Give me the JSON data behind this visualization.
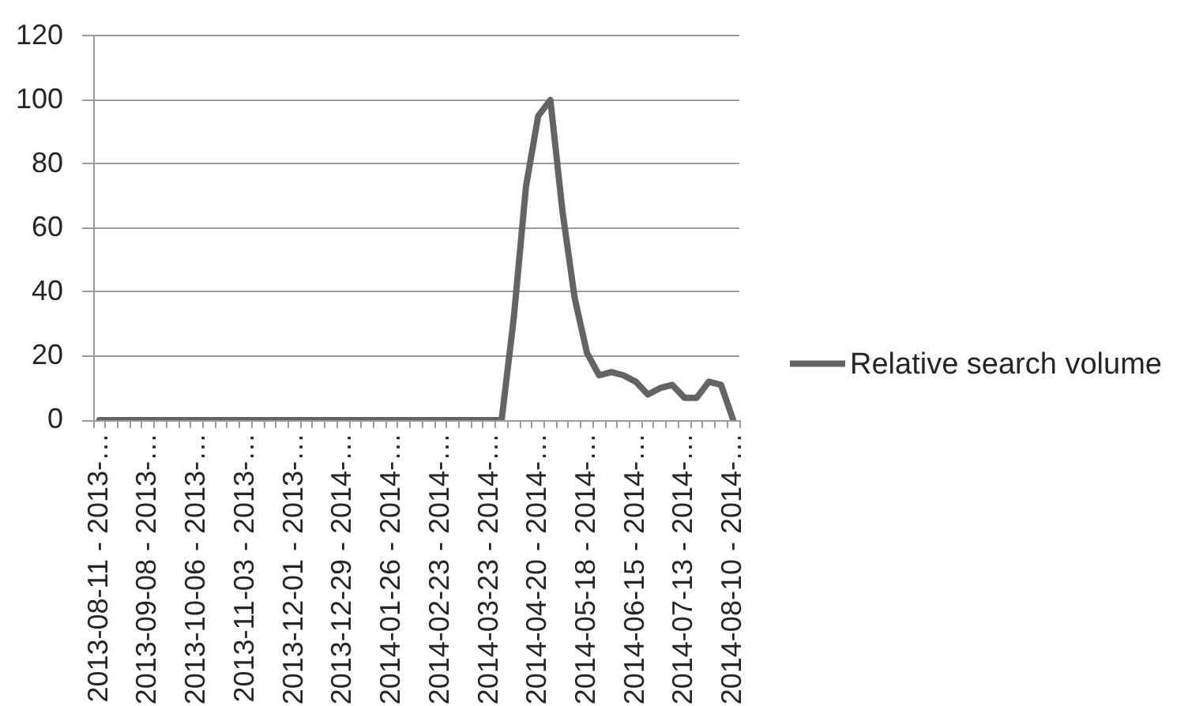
{
  "chart_data": {
    "type": "line",
    "categories": [
      "2013-08-11 - 2013-…",
      null,
      null,
      null,
      "2013-09-08 - 2013-…",
      null,
      null,
      null,
      "2013-10-06 - 2013-…",
      null,
      null,
      null,
      "2013-11-03 - 2013-…",
      null,
      null,
      null,
      "2013-12-01 - 2013-…",
      null,
      null,
      null,
      "2013-12-29 - 2014-…",
      null,
      null,
      null,
      "2014-01-26 - 2014-…",
      null,
      null,
      null,
      "2014-02-23 - 2014-…",
      null,
      null,
      null,
      "2014-03-23 - 2014-…",
      null,
      null,
      null,
      "2014-04-20 - 2014-…",
      null,
      null,
      null,
      "2014-05-18 - 2014-…",
      null,
      null,
      null,
      "2014-06-15 - 2014-…",
      null,
      null,
      null,
      "2014-07-13 - 2014-…",
      null,
      null,
      null,
      "2014-08-10 - 2014-…"
    ],
    "series": [
      {
        "name": "Relative search volume",
        "color": "#646464",
        "values": [
          0,
          0,
          0,
          0,
          0,
          0,
          0,
          0,
          0,
          0,
          0,
          0,
          0,
          0,
          0,
          0,
          0,
          0,
          0,
          0,
          0,
          0,
          0,
          0,
          0,
          0,
          0,
          0,
          0,
          0,
          0,
          0,
          0,
          0,
          32,
          73,
          95,
          100,
          65,
          38,
          21,
          14,
          15,
          14,
          12,
          8,
          10,
          11,
          7,
          7,
          12,
          11,
          0
        ]
      }
    ],
    "ylim": [
      0,
      120
    ],
    "yticks": [
      0,
      20,
      40,
      60,
      80,
      100,
      120
    ],
    "grid": "y",
    "legend": "right",
    "marker": "none",
    "line_style": "solid"
  }
}
